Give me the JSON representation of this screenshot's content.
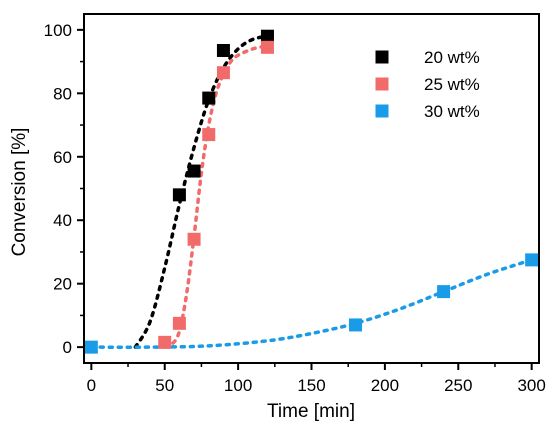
{
  "chart_data": {
    "type": "scatter",
    "title": "",
    "xlabel": "Time [min]",
    "ylabel": "Conversion [%]",
    "xlim": [
      -5,
      305
    ],
    "ylim": [
      -5,
      105
    ],
    "xticks": [
      0,
      50,
      100,
      150,
      200,
      250,
      300
    ],
    "yticks": [
      0,
      20,
      40,
      60,
      80,
      100
    ],
    "grid": false,
    "legend_position": "top-right",
    "series": [
      {
        "name": "20 wt%",
        "color": "#000000",
        "marker": "square",
        "x": [
          60,
          70,
          80,
          90,
          120
        ],
        "y": [
          48,
          55.5,
          78.5,
          93.5,
          98
        ],
        "fit_x": [
          30,
          40,
          50,
          60,
          70,
          80,
          90,
          100,
          110,
          120
        ],
        "fit_y": [
          0,
          8,
          25,
          45,
          63,
          78,
          88,
          94,
          97,
          98
        ]
      },
      {
        "name": "25 wt%",
        "color": "#f26b6b",
        "marker": "square",
        "x": [
          50,
          60,
          70,
          80,
          90,
          120
        ],
        "y": [
          1.5,
          7.5,
          34,
          67,
          86.5,
          94.5
        ],
        "fit_x": [
          50,
          55,
          60,
          65,
          70,
          75,
          80,
          85,
          90,
          95,
          100,
          110,
          120
        ],
        "fit_y": [
          0.5,
          1,
          5,
          17,
          35,
          55,
          70,
          80,
          86,
          90,
          92,
          94,
          95
        ]
      },
      {
        "name": "30 wt%",
        "color": "#1a9be8",
        "marker": "square",
        "x": [
          0,
          180,
          240,
          300
        ],
        "y": [
          0,
          7,
          17.5,
          27.5
        ],
        "fit_x": [
          0,
          40,
          80,
          120,
          150,
          180,
          210,
          240,
          270,
          300
        ],
        "fit_y": [
          0,
          0,
          0.4,
          2,
          4.3,
          7.5,
          12,
          17.5,
          23,
          27.5
        ]
      }
    ]
  }
}
